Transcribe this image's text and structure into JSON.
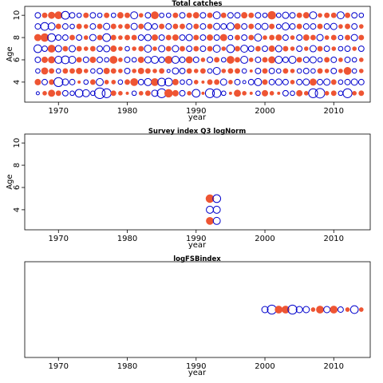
{
  "chart_data": [
    {
      "type": "scatter",
      "title": "Total catches",
      "xlabel": "year",
      "ylabel": "Age",
      "xlim": [
        1965.1,
        2015.3
      ],
      "ylim": [
        2.2,
        10.8
      ],
      "xticks": [
        1970,
        1980,
        1990,
        2000,
        2010
      ],
      "yticks": [
        4,
        6,
        8,
        10
      ],
      "x_years": [
        1967,
        1968,
        1969,
        1970,
        1971,
        1972,
        1973,
        1974,
        1975,
        1976,
        1977,
        1978,
        1979,
        1980,
        1981,
        1982,
        1983,
        1984,
        1985,
        1986,
        1987,
        1988,
        1989,
        1990,
        1991,
        1992,
        1993,
        1994,
        1995,
        1996,
        1997,
        1998,
        1999,
        2000,
        2001,
        2002,
        2003,
        2004,
        2005,
        2006,
        2007,
        2008,
        2009,
        2010,
        2011,
        2012,
        2013,
        2014
      ],
      "ages": [
        3,
        4,
        5,
        6,
        7,
        8,
        9,
        10
      ],
      "residuals": [
        [
          -0.1,
          0.2,
          0.5,
          0.3,
          -0.3,
          -0.2,
          -0.6,
          -0.5,
          -0.2,
          -1.1,
          -0.8,
          0.3,
          0.2,
          0.1,
          -0.2,
          0.2,
          0.3,
          -0.4,
          -0.8,
          0.7,
          0.4,
          -0.3,
          0.2,
          -0.6,
          0.1,
          -0.8,
          -0.7,
          -0.2,
          0.1,
          0.5,
          0.2,
          0.1,
          -0.2,
          0.4,
          0.2,
          0.1,
          -0.3,
          -0.2,
          0.4,
          0.2,
          -0.8,
          -0.9,
          0.2,
          0.3,
          -0.2,
          -0.8,
          0.2,
          0.3
        ],
        [
          0.4,
          -0.3,
          0.3,
          -0.8,
          -0.4,
          -0.3,
          0.1,
          -0.2,
          0.3,
          -0.5,
          0.2,
          0.2,
          -0.2,
          0.3,
          0.6,
          -0.3,
          -0.5,
          0.6,
          -0.6,
          -0.6,
          0.4,
          -0.2,
          -0.3,
          0.2,
          0.1,
          0.3,
          0.3,
          -0.4,
          0.2,
          -0.3,
          -0.1,
          -0.3,
          -0.5,
          0.3,
          -0.3,
          -0.4,
          -0.3,
          0.2,
          -0.3,
          -0.4,
          0.5,
          -0.3,
          -0.4,
          0.3,
          -0.2,
          -0.3,
          -0.4,
          -0.3
        ],
        [
          -0.2,
          0.5,
          0.3,
          -0.2,
          0.3,
          0.3,
          0.4,
          0.2,
          -0.2,
          -0.3,
          0.4,
          0.3,
          0.2,
          -0.3,
          0.2,
          0.4,
          0.3,
          0.2,
          0.3,
          -0.1,
          -0.4,
          -0.3,
          0.3,
          0.2,
          0.3,
          -0.2,
          -0.5,
          0.2,
          0.3,
          0.3,
          -0.2,
          0.1,
          -0.3,
          0.3,
          -0.3,
          -0.2,
          0.3,
          0.2,
          -0.2,
          -0.3,
          -0.2,
          0.3,
          0.2,
          -0.3,
          0.2,
          0.6,
          -0.2,
          0.2
        ],
        [
          -0.3,
          0.4,
          0.5,
          -0.5,
          -0.6,
          -0.5,
          0.3,
          -0.3,
          0.4,
          -0.3,
          -0.2,
          0.6,
          0.2,
          -0.3,
          -0.2,
          0.4,
          -0.4,
          -0.5,
          -0.3,
          0.6,
          -0.5,
          -0.3,
          0.5,
          -0.3,
          0.2,
          -0.3,
          0.3,
          -0.2,
          0.6,
          0.3,
          -0.5,
          0.2,
          -0.3,
          0.3,
          0.5,
          -0.5,
          -0.3,
          -0.5,
          0.3,
          -0.3,
          -0.4,
          -0.2,
          0.3,
          -0.3,
          0.2,
          -0.3,
          -0.2,
          0.2
        ],
        [
          -0.6,
          -0.3,
          0.6,
          -0.4,
          0.3,
          -0.4,
          0.3,
          0.2,
          0.3,
          -0.3,
          -0.4,
          0.4,
          0.2,
          -0.2,
          0.2,
          0.3,
          -0.5,
          0.2,
          -0.4,
          0.3,
          -0.4,
          0.3,
          -0.3,
          0.3,
          -0.3,
          0.3,
          -0.5,
          0.2,
          -0.6,
          0.3,
          -0.5,
          -0.3,
          0.3,
          -0.3,
          0.4,
          -0.4,
          0.3,
          0.2,
          -0.3,
          0.2,
          -0.4,
          0.3,
          -0.3,
          0.2,
          -0.2,
          -0.3,
          0.2,
          -0.3
        ],
        [
          0.5,
          0.7,
          -0.6,
          -0.3,
          -0.3,
          0.3,
          -0.3,
          0.2,
          -0.4,
          0.3,
          -0.6,
          0.3,
          0.2,
          0.3,
          0.3,
          -0.3,
          -0.4,
          0.4,
          -0.3,
          0.3,
          0.4,
          -0.3,
          -0.4,
          0.3,
          -0.3,
          0.4,
          -0.3,
          0.5,
          -0.2,
          0.3,
          -0.3,
          0.3,
          -0.5,
          0.2,
          0.3,
          0.4,
          -0.3,
          0.2,
          -0.3,
          0.4,
          0.3,
          -0.4,
          0.2,
          0.3,
          -0.2,
          0.3,
          -0.4,
          0.3
        ],
        [
          -0.3,
          -0.6,
          -0.5,
          0.3,
          -0.3,
          -0.2,
          0.3,
          0.2,
          -0.3,
          0.3,
          -0.4,
          0.3,
          0.2,
          0.3,
          -0.4,
          0.3,
          -0.5,
          -0.3,
          0.3,
          -0.3,
          0.3,
          0.3,
          -0.3,
          0.3,
          -0.3,
          0.3,
          -0.4,
          -0.3,
          -0.5,
          0.4,
          -0.3,
          0.3,
          -0.3,
          -0.4,
          0.3,
          -0.2,
          -0.5,
          -0.3,
          0.3,
          -0.3,
          -0.3,
          0.3,
          -0.3,
          -0.4,
          0.2,
          0.3,
          -0.3,
          0.2
        ],
        [
          -0.3,
          0.3,
          0.5,
          0.6,
          -0.6,
          -0.3,
          -0.2,
          0.3,
          -0.3,
          -0.2,
          0.3,
          -0.2,
          0.4,
          0.3,
          -0.5,
          0.2,
          -0.3,
          0.6,
          -0.2,
          -0.2,
          0.3,
          -0.3,
          0.3,
          0.4,
          -0.3,
          0.3,
          -0.5,
          0.3,
          -0.3,
          -0.3,
          0.4,
          0.3,
          -0.3,
          -0.2,
          0.7,
          -0.2,
          -0.4,
          -0.3,
          0.3,
          0.4,
          -0.5,
          0.2,
          0.3,
          0.3,
          -0.5,
          0.3,
          -0.3,
          -0.2
        ]
      ]
    },
    {
      "type": "scatter",
      "title": "Survey index Q3 logNorm",
      "xlabel": "year",
      "ylabel": "Age",
      "xlim": [
        1965.1,
        2015.3
      ],
      "ylim": [
        2.2,
        10.8
      ],
      "xticks": [
        1970,
        1980,
        1990,
        2000,
        2010
      ],
      "yticks": [
        4,
        6,
        8,
        10
      ],
      "points": [
        {
          "x": 1992,
          "y": 3,
          "r": 0.6
        },
        {
          "x": 1993,
          "y": 3,
          "r": -0.5
        },
        {
          "x": 1992,
          "y": 4,
          "r": -0.5
        },
        {
          "x": 1993,
          "y": 4,
          "r": -0.5
        },
        {
          "x": 1992,
          "y": 5,
          "r": 0.7
        },
        {
          "x": 1993,
          "y": 5,
          "r": -0.6
        }
      ]
    },
    {
      "type": "scatter",
      "title": "logFSBindex",
      "xlabel": "year",
      "ylabel": "",
      "xlim": [
        1965.1,
        2015.3
      ],
      "ylim": [
        0,
        1
      ],
      "xticks": [
        1970,
        1980,
        1990,
        2000,
        2010
      ],
      "yticks": [],
      "y_level": 0.5,
      "points": [
        {
          "x": 2000,
          "y": 0.5,
          "r": -0.4
        },
        {
          "x": 2001,
          "y": 0.5,
          "r": -0.8
        },
        {
          "x": 2002,
          "y": 0.5,
          "r": 0.6
        },
        {
          "x": 2003,
          "y": 0.5,
          "r": 0.6
        },
        {
          "x": 2004,
          "y": 0.5,
          "r": -0.8
        },
        {
          "x": 2005,
          "y": 0.5,
          "r": -0.4
        },
        {
          "x": 2006,
          "y": 0.5,
          "r": -0.4
        },
        {
          "x": 2007,
          "y": 0.5,
          "r": 0.2
        },
        {
          "x": 2008,
          "y": 0.5,
          "r": 0.6
        },
        {
          "x": 2009,
          "y": 0.5,
          "r": -0.4
        },
        {
          "x": 2010,
          "y": 0.5,
          "r": 0.6
        },
        {
          "x": 2011,
          "y": 0.5,
          "r": -0.3
        },
        {
          "x": 2012,
          "y": 0.5,
          "r": 0.2
        },
        {
          "x": 2013,
          "y": 0.5,
          "r": -0.6
        },
        {
          "x": 2014,
          "y": 0.5,
          "r": 0.2
        }
      ]
    }
  ],
  "colors": {
    "positive": "#ee5533",
    "negative": "#0000cc",
    "frame": "#000000"
  }
}
